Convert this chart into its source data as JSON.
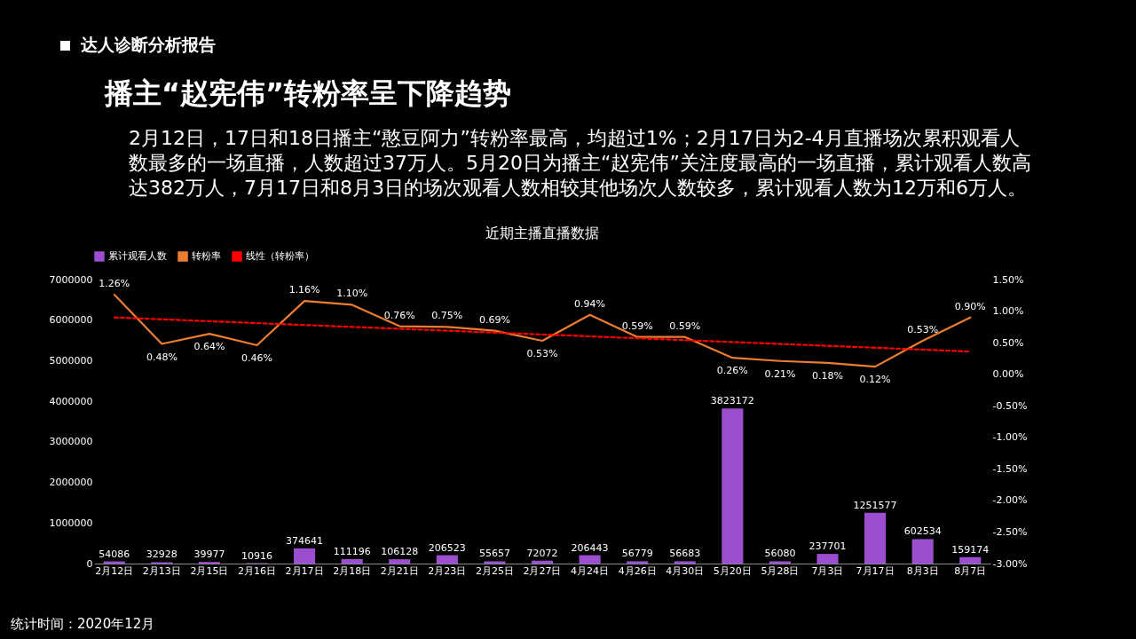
{
  "chart_data": {
    "type": "bar",
    "title": "近期主播直播数据",
    "subtitle": "2月12日，17日和18日播主“憨豆阿力”转粉率最高，均超过1%；2月17日为2-4月直播场次累积观看人数最多的一场直播，人数超过37万人。5月20日为播主“赵宪伟”关注度最高的一场直播，累计观看人数高达382万人，7月17日和8月3日的场次观看人数相较其他场次人数较多，累计观看人数为12万和6万人。",
    "annotations": [
      "达人诊断分析报告",
      "播主“赵宪伟”转粉率呈下降趋势",
      "统计时间：2020年12月"
    ],
    "categories": [
      "2月12日",
      "2月13日",
      "2月15日",
      "2月16日",
      "2月17日",
      "2月18日",
      "2月21日",
      "2月23日",
      "2月25日",
      "2月27日",
      "4月24日",
      "4月26日",
      "4月30日",
      "5月20日",
      "5月28日",
      "7月3日",
      "7月17日",
      "8月3日",
      "8月7日"
    ],
    "series": [
      {
        "name": "累计观看人数",
        "color": "#9b4fd0",
        "values": [
          54086,
          32928,
          39977,
          10916,
          374641,
          111196,
          106128,
          206523,
          55657,
          72072,
          206443,
          56779,
          56683,
          3823172,
          56080,
          237701,
          1251577,
          602534,
          159174
        ],
        "value_labels": [
          "54086",
          "32928",
          "39977",
          "10916",
          "374641",
          "111196",
          "106128",
          "206523",
          "55657",
          "72072",
          "206443",
          "56779",
          "56683",
          "3823172",
          "56080",
          "237701",
          "1251577",
          "602534",
          "159174"
        ]
      },
      {
        "name": "转粉率",
        "type": "line",
        "axis": "y2",
        "color": "#ed7d31",
        "values": [
          1.26,
          0.48,
          0.64,
          0.46,
          1.16,
          1.1,
          0.76,
          0.75,
          0.69,
          0.53,
          0.94,
          0.59,
          0.59,
          0.26,
          0.21,
          0.18,
          0.12,
          0.53,
          0.9
        ],
        "value_labels": [
          "1.26%",
          "0.48%",
          "0.64%",
          "0.46%",
          "1.16%",
          "1.10%",
          "0.76%",
          "0.75%",
          "0.69%",
          "0.53%",
          "0.94%",
          "0.59%",
          "0.59%",
          "0.26%",
          "0.21%",
          "0.18%",
          "0.12%",
          "0.53%",
          "0.90%"
        ]
      },
      {
        "name": "线性（转粉率）",
        "type": "line",
        "axis": "y2",
        "color": "#ff0000",
        "line_style": "dashed",
        "x": [
          "2月12日",
          "8月7日"
        ],
        "values": [
          0.9,
          0.36
        ]
      }
    ],
    "ylim": [
      0,
      7000000
    ],
    "yticks": [
      0,
      1000000,
      2000000,
      3000000,
      4000000,
      5000000,
      6000000,
      7000000
    ],
    "y2lim": [
      -3,
      1.5
    ],
    "y2ticks": [
      {
        "value": -3,
        "label": "-3.00%"
      },
      {
        "value": -2.5,
        "label": "-2.50%"
      },
      {
        "value": -2,
        "label": "-2.00%"
      },
      {
        "value": -1.5,
        "label": "-1.50%"
      },
      {
        "value": -1,
        "label": "-1.00%"
      },
      {
        "value": -0.5,
        "label": "-0.50%"
      },
      {
        "value": 0,
        "label": "0.00%"
      },
      {
        "value": 0.5,
        "label": "0.50%"
      },
      {
        "value": 1,
        "label": "1.00%"
      },
      {
        "value": 1.5,
        "label": "1.50%"
      }
    ],
    "grid": false,
    "legend": "top",
    "marker": "none"
  }
}
